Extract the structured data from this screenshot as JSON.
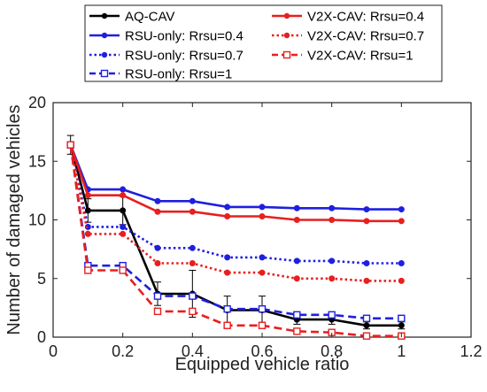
{
  "chart_data": {
    "type": "line",
    "title": "",
    "xlabel": "Equipped vehicle ratio",
    "ylabel": "Number of damaged vehicles",
    "xlim": [
      0,
      1.2
    ],
    "ylim": [
      0,
      20
    ],
    "xticks": [
      "0",
      "0.2",
      "0.4",
      "0.6",
      "0.8",
      "1",
      "1.2"
    ],
    "yticks": [
      "0",
      "5",
      "10",
      "15",
      "20"
    ],
    "grid": false,
    "legend_position": "top",
    "x": [
      0.05,
      0.1,
      0.2,
      0.3,
      0.4,
      0.5,
      0.6,
      0.7,
      0.8,
      0.9,
      1.0
    ],
    "series": [
      {
        "name": "AQ-CAV",
        "color": "#000000",
        "linestyle": "solid",
        "marker": "dot",
        "values": [
          16.4,
          10.8,
          10.8,
          3.7,
          3.7,
          2.3,
          2.3,
          1.5,
          1.5,
          1.0,
          1.0
        ],
        "error": [
          0.8,
          1.0,
          1.2,
          1.0,
          2.0,
          1.2,
          1.2,
          0.4,
          0.4,
          0.3,
          0.3
        ]
      },
      {
        "name": "RSU-only: Rrsu=0.4",
        "color": "#1f1fe0",
        "linestyle": "solid",
        "marker": "dot",
        "values": [
          16.4,
          12.6,
          12.6,
          11.6,
          11.6,
          11.1,
          11.1,
          11.0,
          11.0,
          10.9,
          10.9
        ]
      },
      {
        "name": "RSU-only: Rrsu=0.7",
        "color": "#1f1fe0",
        "linestyle": "dotted",
        "marker": "dot",
        "values": [
          16.4,
          9.4,
          9.4,
          7.6,
          7.6,
          6.8,
          6.8,
          6.5,
          6.5,
          6.3,
          6.3
        ]
      },
      {
        "name": "RSU-only: Rrsu=1",
        "color": "#1f1fe0",
        "linestyle": "dashed",
        "marker": "open-square",
        "values": [
          16.4,
          6.1,
          6.1,
          3.5,
          3.5,
          2.4,
          2.4,
          1.9,
          1.9,
          1.6,
          1.6
        ]
      },
      {
        "name": "V2X-CAV: Rrsu=0.4",
        "color": "#e81f1f",
        "linestyle": "solid",
        "marker": "dot",
        "values": [
          16.4,
          12.1,
          12.1,
          10.7,
          10.7,
          10.3,
          10.3,
          10.0,
          10.0,
          9.9,
          9.9
        ]
      },
      {
        "name": "V2X-CAV: Rrsu=0.7",
        "color": "#e81f1f",
        "linestyle": "dotted",
        "marker": "dot",
        "values": [
          16.4,
          8.8,
          8.8,
          6.3,
          6.3,
          5.5,
          5.5,
          5.0,
          5.0,
          4.8,
          4.8
        ]
      },
      {
        "name": "V2X-CAV: Rrsu=1",
        "color": "#e81f1f",
        "linestyle": "dashed",
        "marker": "open-square",
        "values": [
          16.4,
          5.7,
          5.7,
          2.2,
          2.2,
          1.0,
          1.0,
          0.5,
          0.4,
          0.1,
          0.1
        ]
      }
    ]
  }
}
